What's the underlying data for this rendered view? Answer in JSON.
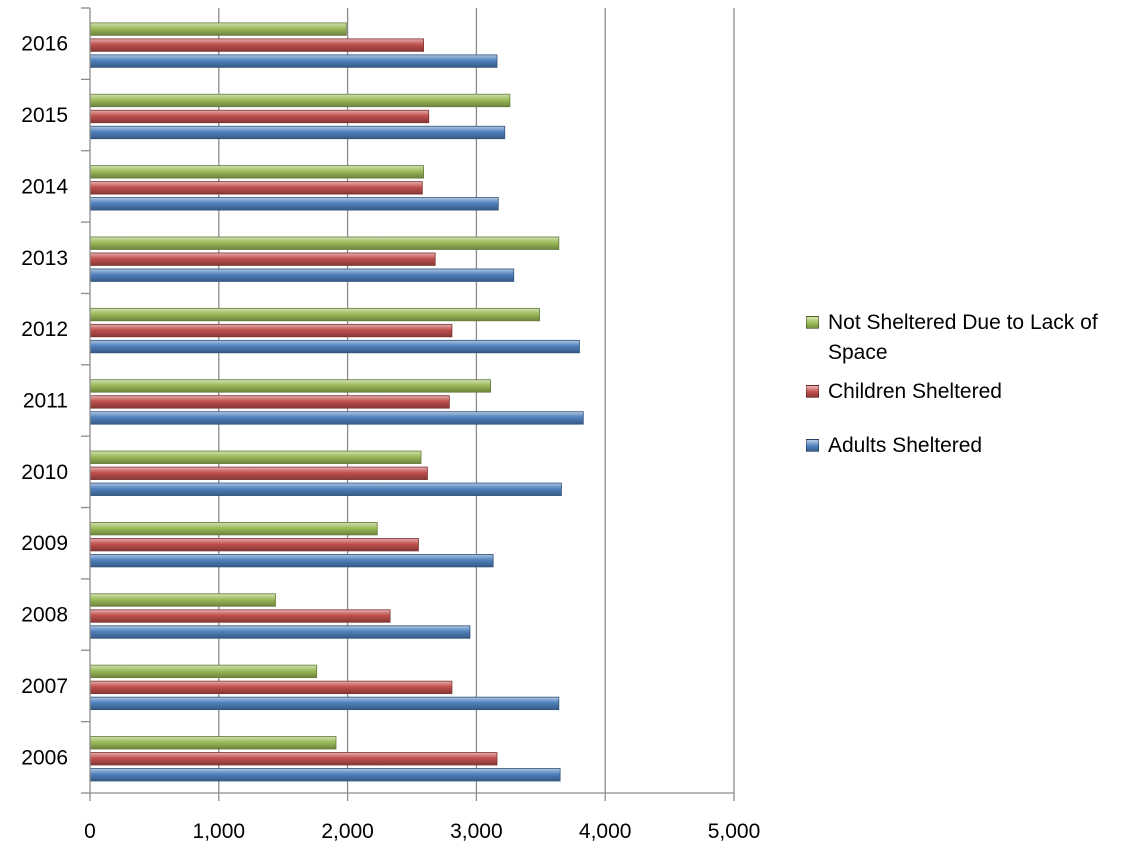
{
  "chart_data": {
    "type": "bar",
    "orientation": "horizontal",
    "categories": [
      "2006",
      "2007",
      "2008",
      "2009",
      "2010",
      "2011",
      "2012",
      "2013",
      "2014",
      "2015",
      "2016"
    ],
    "series": [
      {
        "name": "Adults Sheltered",
        "color": "#4F81BD",
        "values": [
          3650,
          3640,
          2950,
          3130,
          3660,
          3830,
          3800,
          3290,
          3170,
          3220,
          3160
        ]
      },
      {
        "name": "Children Sheltered",
        "color": "#C0504D",
        "values": [
          3160,
          2810,
          2330,
          2550,
          2620,
          2790,
          2810,
          2680,
          2580,
          2630,
          2590
        ]
      },
      {
        "name": "Not Sheltered Due to Lack of Space",
        "color": "#9BBB59",
        "values": [
          1910,
          1760,
          1440,
          2230,
          2570,
          3110,
          3490,
          3640,
          2590,
          3260,
          1990
        ]
      }
    ],
    "xlim": [
      0,
      5000
    ],
    "xticks": [
      "0",
      "1,000",
      "2,000",
      "3,000",
      "4,000",
      "5,000"
    ],
    "grid": "vertical",
    "legend_position": "right",
    "legend_order": [
      "Not Sheltered Due to Lack of Space",
      "Children Sheltered",
      "Adults Sheltered"
    ],
    "legend_lines": [
      [
        "Not Sheltered Due to Lack of",
        "Space"
      ],
      [
        "Children Sheltered"
      ],
      [
        "Adults Sheltered"
      ]
    ],
    "title": "",
    "xlabel": "",
    "ylabel": ""
  }
}
